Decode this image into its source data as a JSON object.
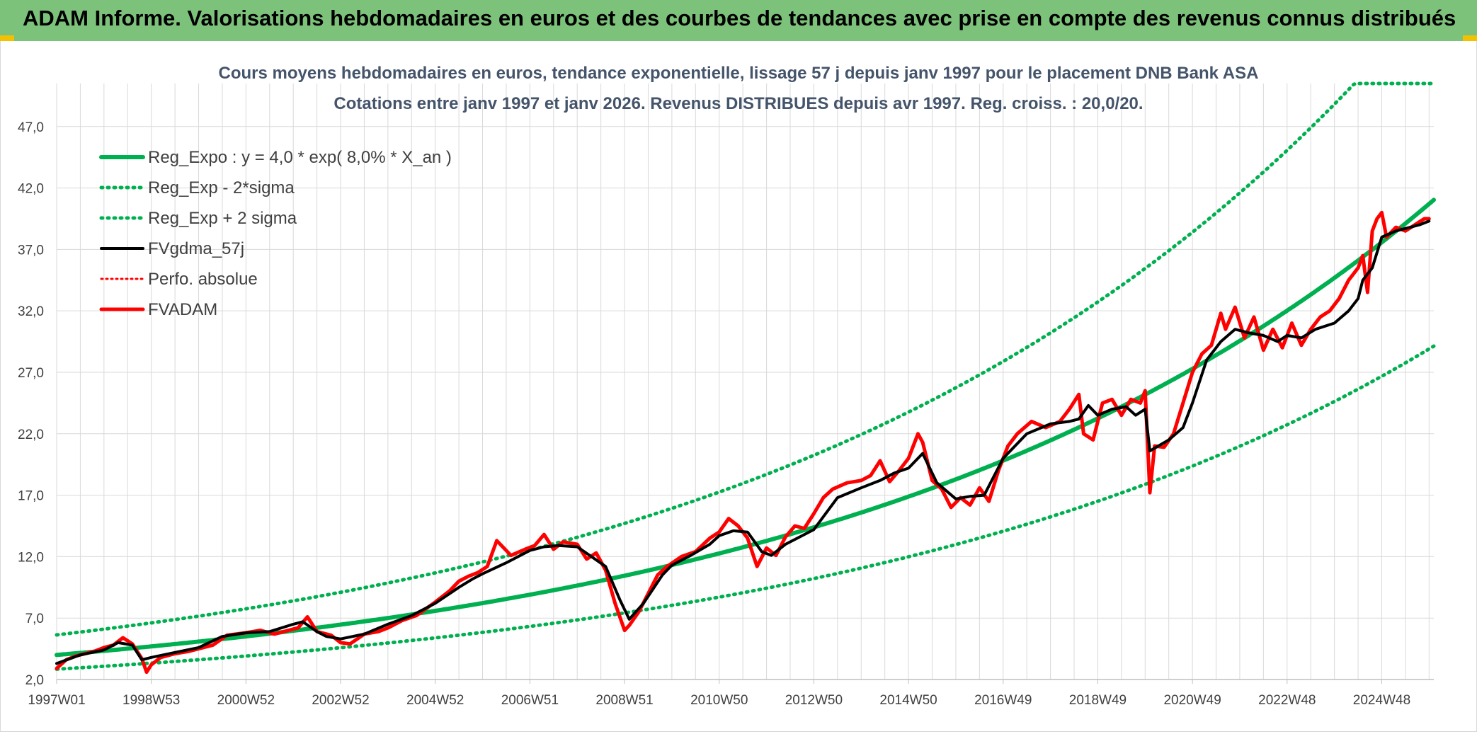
{
  "banner": {
    "title": "ADAM Informe. Valorisations hebdomadaires en euros et des courbes de tendances avec prise en compte des revenus connus distribués"
  },
  "colors": {
    "banner": "#7dc27a",
    "green": "#00b050",
    "black": "#000000",
    "red": "#ff0000",
    "grid": "#d9d9d9",
    "title": "#44546a"
  },
  "chart_data": {
    "type": "line",
    "title": "Cours moyens hebdomadaires en euros, tendance exponentielle, lissage 57 j depuis janv 1997 pour le placement DNB Bank ASA",
    "subtitle": "Cotations entre janv 1997 et janv 2026. Revenus DISTRIBUES depuis avr 1997. Reg. croiss. : 20,0/20.",
    "xlabel": "",
    "ylabel": "",
    "ylim": [
      2.0,
      50.5
    ],
    "xlim": [
      1997.0,
      2026.1
    ],
    "grid": true,
    "legend_position": "top-left",
    "y_ticks": [
      "2,0",
      "7,0",
      "12,0",
      "17,0",
      "22,0",
      "27,0",
      "32,0",
      "37,0",
      "42,0",
      "47,0"
    ],
    "y_tick_values": [
      2,
      7,
      12,
      17,
      22,
      27,
      32,
      37,
      42,
      47
    ],
    "x_ticks": [
      "1997W01",
      "1998W53",
      "2000W52",
      "2002W52",
      "2004W52",
      "2006W51",
      "2008W51",
      "2010W50",
      "2012W50",
      "2014W50",
      "2016W49",
      "2018W49",
      "2020W49",
      "2022W48",
      "2024W48"
    ],
    "x_tick_years": [
      1997.0,
      1999.0,
      2001.0,
      2003.0,
      2005.0,
      2007.0,
      2009.0,
      2011.0,
      2013.0,
      2015.0,
      2017.0,
      2019.0,
      2021.0,
      2023.0,
      2025.0
    ],
    "series": [
      {
        "name": "Reg_Expo : y = 4,0 * exp( 8,0% *  X_an )",
        "style": "solid-green",
        "formula": {
          "a": 4.0,
          "rate": 0.08
        }
      },
      {
        "name": "Reg_Exp - 2*sigma",
        "style": "dotted-green",
        "formula": {
          "a": 2.84,
          "rate": 0.08
        }
      },
      {
        "name": "Reg_Exp + 2 sigma",
        "style": "dotted-green",
        "formula": {
          "a": 5.63,
          "rate": 0.08,
          "cap": 50.5
        }
      },
      {
        "name": "FVgdma_57j",
        "style": "solid-black",
        "x": [
          1997.0,
          1997.5,
          1998.0,
          1998.3,
          1998.6,
          1998.8,
          1999.0,
          1999.5,
          2000.0,
          2000.5,
          2001.0,
          2001.5,
          2002.0,
          2002.2,
          2002.5,
          2002.7,
          2003.0,
          2003.5,
          2004.0,
          2004.5,
          2005.0,
          2005.5,
          2005.8,
          2006.0,
          2006.5,
          2007.0,
          2007.3,
          2007.6,
          2008.0,
          2008.3,
          2008.6,
          2008.9,
          2009.1,
          2009.4,
          2009.8,
          2010.0,
          2010.4,
          2010.8,
          2011.0,
          2011.3,
          2011.6,
          2011.9,
          2012.1,
          2012.4,
          2012.7,
          2013.0,
          2013.5,
          2014.0,
          2014.4,
          2014.7,
          2015.0,
          2015.3,
          2015.6,
          2016.0,
          2016.3,
          2016.6,
          2017.0,
          2017.5,
          2018.0,
          2018.4,
          2018.6,
          2018.8,
          2019.0,
          2019.3,
          2019.6,
          2019.8,
          2020.0,
          2020.1,
          2020.5,
          2020.8,
          2021.0,
          2021.3,
          2021.6,
          2021.9,
          2022.2,
          2022.5,
          2022.8,
          2023.0,
          2023.3,
          2023.6,
          2024.0,
          2024.3,
          2024.5,
          2024.6,
          2024.8,
          2025.0,
          2025.3,
          2025.6,
          2025.8,
          2026.0
        ],
        "values": [
          3.3,
          4.0,
          4.4,
          5.0,
          4.8,
          3.6,
          3.8,
          4.2,
          4.6,
          5.5,
          5.8,
          5.9,
          6.5,
          6.7,
          5.9,
          5.5,
          5.3,
          5.7,
          6.5,
          7.2,
          8.2,
          9.5,
          10.2,
          10.6,
          11.5,
          12.5,
          12.8,
          12.9,
          12.8,
          12.0,
          11.2,
          8.5,
          6.9,
          8.2,
          10.5,
          11.3,
          12.1,
          13.0,
          13.7,
          14.1,
          14.0,
          12.4,
          12.1,
          13.0,
          13.6,
          14.2,
          16.8,
          17.6,
          18.2,
          18.8,
          19.2,
          20.4,
          18.0,
          16.7,
          16.9,
          17.0,
          20.0,
          22.0,
          22.8,
          23.0,
          23.2,
          24.3,
          23.5,
          24.0,
          24.2,
          23.5,
          24.0,
          20.6,
          21.5,
          22.5,
          24.5,
          28.0,
          29.5,
          30.5,
          30.2,
          30.0,
          29.5,
          30.0,
          29.8,
          30.5,
          31.0,
          32.0,
          33.0,
          34.5,
          35.5,
          38.0,
          38.5,
          38.8,
          39.0,
          39.3
        ]
      },
      {
        "name": "Perfo. absolue",
        "style": "dotted-red",
        "hidden_in_plot": true
      },
      {
        "name": "FVADAM",
        "style": "solid-red",
        "x": [
          1997.0,
          1997.2,
          1997.4,
          1997.6,
          1997.8,
          1998.0,
          1998.2,
          1998.4,
          1998.6,
          1998.8,
          1998.9,
          1999.0,
          1999.2,
          1999.5,
          1999.8,
          2000.0,
          2000.3,
          2000.6,
          2001.0,
          2001.3,
          2001.6,
          2001.9,
          2002.1,
          2002.3,
          2002.5,
          2002.8,
          2003.0,
          2003.2,
          2003.5,
          2003.8,
          2004.0,
          2004.3,
          2004.6,
          2005.0,
          2005.3,
          2005.5,
          2005.7,
          2005.9,
          2006.1,
          2006.3,
          2006.6,
          2006.9,
          2007.1,
          2007.3,
          2007.5,
          2007.7,
          2008.0,
          2008.2,
          2008.4,
          2008.6,
          2008.8,
          2009.0,
          2009.1,
          2009.3,
          2009.5,
          2009.7,
          2009.9,
          2010.2,
          2010.5,
          2010.8,
          2011.0,
          2011.2,
          2011.4,
          2011.6,
          2011.8,
          2012.0,
          2012.2,
          2012.4,
          2012.6,
          2012.8,
          2013.0,
          2013.2,
          2013.4,
          2013.7,
          2014.0,
          2014.2,
          2014.4,
          2014.6,
          2014.8,
          2015.0,
          2015.2,
          2015.3,
          2015.5,
          2015.7,
          2015.9,
          2016.1,
          2016.3,
          2016.5,
          2016.7,
          2016.9,
          2017.1,
          2017.3,
          2017.6,
          2017.9,
          2018.2,
          2018.4,
          2018.6,
          2018.7,
          2018.9,
          2019.1,
          2019.3,
          2019.5,
          2019.7,
          2019.9,
          2020.0,
          2020.1,
          2020.2,
          2020.4,
          2020.6,
          2020.8,
          2021.0,
          2021.2,
          2021.4,
          2021.6,
          2021.7,
          2021.9,
          2022.1,
          2022.3,
          2022.5,
          2022.7,
          2022.9,
          2023.1,
          2023.3,
          2023.5,
          2023.7,
          2023.9,
          2024.1,
          2024.3,
          2024.5,
          2024.6,
          2024.7,
          2024.8,
          2024.9,
          2025.0,
          2025.1,
          2025.3,
          2025.5,
          2025.7,
          2025.9,
          2026.0
        ],
        "values": [
          2.9,
          3.6,
          3.9,
          4.1,
          4.3,
          4.6,
          4.8,
          5.4,
          4.9,
          3.7,
          2.6,
          3.2,
          3.8,
          4.1,
          4.3,
          4.5,
          4.8,
          5.6,
          5.8,
          6.0,
          5.7,
          6.0,
          6.2,
          7.1,
          5.9,
          5.6,
          5.0,
          4.9,
          5.7,
          5.9,
          6.2,
          6.8,
          7.2,
          8.3,
          9.2,
          10.0,
          10.4,
          10.7,
          11.2,
          13.3,
          12.1,
          12.6,
          12.9,
          13.8,
          12.6,
          13.2,
          13.0,
          11.8,
          12.3,
          10.9,
          8.2,
          6.0,
          6.4,
          7.5,
          9.0,
          10.5,
          11.2,
          12.0,
          12.4,
          13.5,
          14.0,
          15.1,
          14.5,
          13.5,
          11.2,
          12.7,
          12.1,
          13.6,
          14.5,
          14.3,
          15.5,
          16.8,
          17.5,
          18.0,
          18.2,
          18.6,
          19.8,
          18.1,
          19.0,
          20.0,
          22.0,
          21.3,
          18.2,
          17.5,
          16.0,
          16.8,
          16.2,
          17.6,
          16.5,
          19.0,
          21.0,
          22.0,
          23.0,
          22.5,
          23.0,
          24.0,
          25.2,
          22.0,
          21.5,
          24.5,
          24.8,
          23.5,
          24.8,
          24.5,
          25.5,
          17.2,
          21.0,
          20.9,
          22.0,
          24.5,
          27.0,
          28.5,
          29.2,
          31.8,
          30.5,
          32.3,
          29.8,
          31.5,
          28.8,
          30.5,
          29.0,
          31.0,
          29.2,
          30.5,
          31.5,
          32.0,
          33.0,
          34.5,
          35.5,
          36.5,
          33.5,
          38.5,
          39.5,
          40.0,
          38.0,
          38.8,
          38.5,
          39.0,
          39.5,
          39.5
        ]
      }
    ]
  }
}
